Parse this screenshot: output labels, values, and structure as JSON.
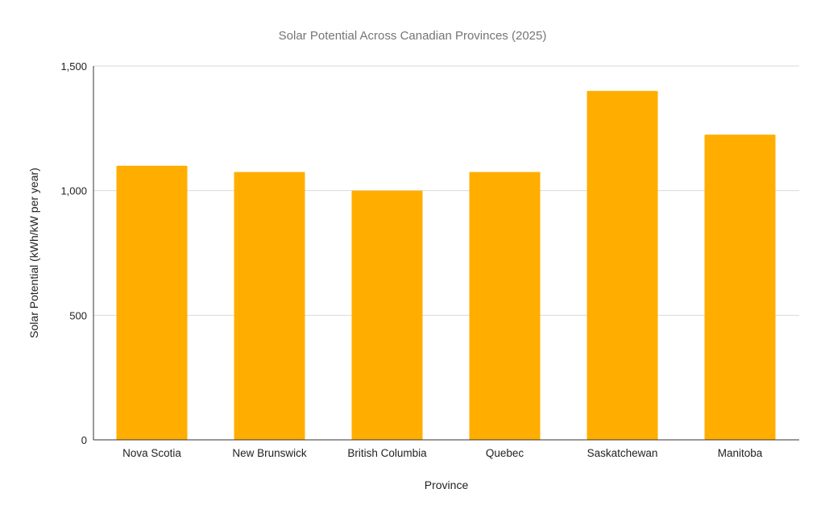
{
  "chart_data": {
    "type": "bar",
    "title": "Solar Potential Across Canadian Provinces (2025)",
    "xlabel": "Province",
    "ylabel": "Solar Potential (kWh/kW per year)",
    "categories": [
      "Nova Scotia",
      "New Brunswick",
      "British Columbia",
      "Quebec",
      "Saskatchewan",
      "Manitoba"
    ],
    "values": [
      1100,
      1075,
      1000,
      1075,
      1400,
      1225
    ],
    "ylim": [
      0,
      1500
    ],
    "yticks": [
      0,
      500,
      1000,
      1500
    ],
    "ytick_labels": [
      "0",
      "500",
      "1,000",
      "1,500"
    ],
    "grid": true,
    "legend": "none",
    "colors": {
      "bar": "#ffae00",
      "grid": "#d9d9d9",
      "axis": "#333333",
      "text": "#222222",
      "title": "#757575"
    }
  }
}
